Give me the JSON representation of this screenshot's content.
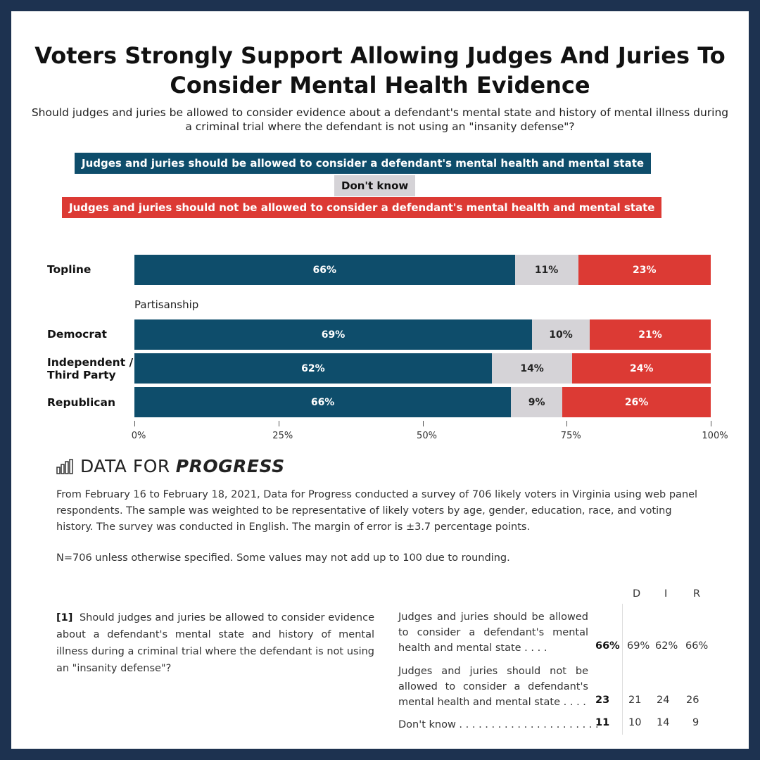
{
  "title": "Voters Strongly Support Allowing Judges And Juries To Consider Mental Health Evidence",
  "subtitle": "Should judges and juries be allowed to consider evidence about a defendant's mental state and history of mental illness during a criminal trial where the defendant is not using an \"insanity defense\"?",
  "colors": {
    "allowed": "#0e4d6b",
    "dont_know": "#d5d3d7",
    "not_allowed": "#dc3a34",
    "frame": "#1d3250"
  },
  "chart_data": {
    "type": "bar",
    "orientation": "horizontal-stacked",
    "legend": [
      "Judges and juries should be allowed to consider a defendant's mental health and mental state",
      "Don't know",
      "Judges and juries should not be allowed to consider a defendant's mental health and mental state"
    ],
    "legend_placement": "top",
    "group_label": "Partisanship",
    "categories": [
      "Topline",
      "Democrat",
      "Independent / Third Party",
      "Republican"
    ],
    "series": [
      {
        "name": "Judges and juries should be allowed to consider a defendant's mental health and mental state",
        "values": [
          66,
          69,
          62,
          66
        ],
        "labels": [
          "66%",
          "69%",
          "62%",
          "66%"
        ]
      },
      {
        "name": "Don't know",
        "values": [
          11,
          10,
          14,
          9
        ],
        "labels": [
          "11%",
          "10%",
          "14%",
          "9%"
        ]
      },
      {
        "name": "Judges and juries should not be allowed to consider a defendant's mental health and mental state",
        "values": [
          23,
          21,
          24,
          26
        ],
        "labels": [
          "23%",
          "21%",
          "24%",
          "26%"
        ]
      }
    ],
    "xlim": [
      0,
      100
    ],
    "xticks": [
      "0%",
      "25%",
      "50%",
      "75%",
      "100%"
    ],
    "grid": false
  },
  "logo": {
    "light": "DATA FOR",
    "bold": "PROGRESS"
  },
  "methodology": "From February 16 to February 18, 2021, Data for Progress conducted a survey of 706 likely voters in Virginia using web panel respondents. The sample was weighted to be representative of likely voters by age, gender, education, race, and voting history. The survey was conducted in English. The margin of error is ±3.7 percentage points.",
  "note": "N=706 unless otherwise specified. Some values may not add up to 100 due to rounding.",
  "table": {
    "headers": [
      "D",
      "I",
      "R"
    ],
    "question_num": "[1]",
    "question": "Should judges and juries be allowed to consider evidence about a defendant's mental state and history of mental illness during a criminal trial where the defendant is not using an \"insanity defense\"?",
    "rows": [
      {
        "label": "Judges and juries should be allowed to consider a defendant's mental health and mental state . . . .",
        "total": "66%",
        "d": "69%",
        "i": "62%",
        "r": "66%"
      },
      {
        "label": "Judges and juries should not be allowed to consider a defendant's mental health and mental state . . . .",
        "total": "23",
        "d": "21",
        "i": "24",
        "r": "26"
      },
      {
        "label": "Don't know . . . . . . . . . . . . . . . . . . . . . .",
        "total": "11",
        "d": "10",
        "i": "14",
        "r": "9"
      }
    ]
  }
}
